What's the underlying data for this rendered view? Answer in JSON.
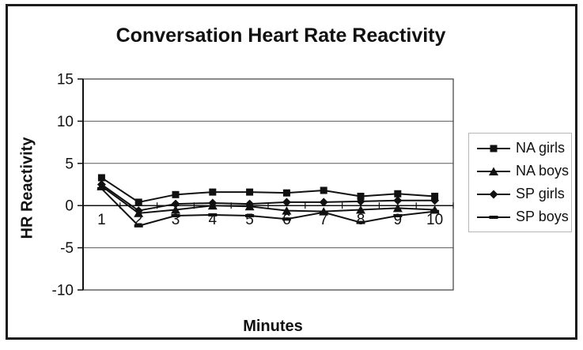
{
  "chart_data": {
    "type": "line",
    "title": "Conversation Heart Rate Reactivity",
    "xlabel": "Minutes",
    "ylabel": "HR Reactivity",
    "categories": [
      "1",
      "2",
      "3",
      "4",
      "5",
      "6",
      "7",
      "8",
      "9",
      "10"
    ],
    "ylim": [
      -10,
      15
    ],
    "yticks": [
      15,
      10,
      5,
      0,
      -5,
      -10
    ],
    "grid": "horizontal",
    "legend_position": "right",
    "line_color": "#111111",
    "background_color": "#ffffff",
    "series": [
      {
        "name": "NA girls",
        "marker": "square",
        "values": [
          3.3,
          0.4,
          1.3,
          1.6,
          1.6,
          1.5,
          1.8,
          1.1,
          1.4,
          1.1
        ]
      },
      {
        "name": "NA boys",
        "marker": "triangle",
        "values": [
          2.3,
          -0.9,
          -0.5,
          0.0,
          -0.1,
          -0.6,
          -0.7,
          -0.5,
          -0.3,
          -0.5
        ]
      },
      {
        "name": "SP girls",
        "marker": "diamond",
        "values": [
          2.5,
          -0.6,
          0.2,
          0.3,
          0.2,
          0.4,
          0.4,
          0.5,
          0.6,
          0.6
        ]
      },
      {
        "name": "SP boys",
        "marker": "dash",
        "values": [
          2.0,
          -2.4,
          -1.2,
          -1.1,
          -1.2,
          -1.6,
          -0.8,
          -2.0,
          -1.2,
          -0.7
        ]
      }
    ]
  }
}
